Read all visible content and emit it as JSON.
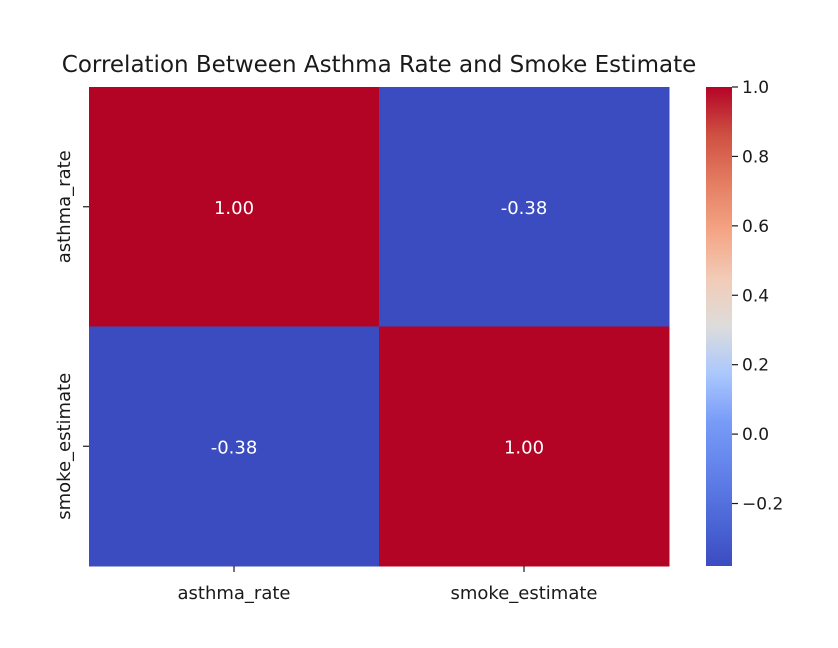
{
  "chart_data": {
    "type": "heatmap",
    "title": "Correlation Between Asthma Rate and Smoke Estimate",
    "row_labels": [
      "asthma_rate",
      "smoke_estimate"
    ],
    "col_labels": [
      "asthma_rate",
      "smoke_estimate"
    ],
    "values": [
      [
        1.0,
        -0.38
      ],
      [
        -0.38,
        1.0
      ]
    ],
    "cell_labels": [
      [
        "1.00",
        "-0.38"
      ],
      [
        "-0.38",
        "1.00"
      ]
    ],
    "colormap": "coolwarm",
    "colorbar": {
      "min": -0.38,
      "max": 1.0,
      "ticks": [
        1.0,
        0.8,
        0.6,
        0.4,
        0.2,
        0.0,
        -0.2
      ],
      "tick_labels": [
        "1.0",
        "0.8",
        "0.6",
        "0.4",
        "0.2",
        "0.0",
        "−0.2"
      ],
      "position": "right"
    },
    "colors": {
      "high": "#b40426",
      "mid": "#dddddd",
      "low": "#3b4cc0",
      "cell_text": "#ffffff"
    }
  }
}
